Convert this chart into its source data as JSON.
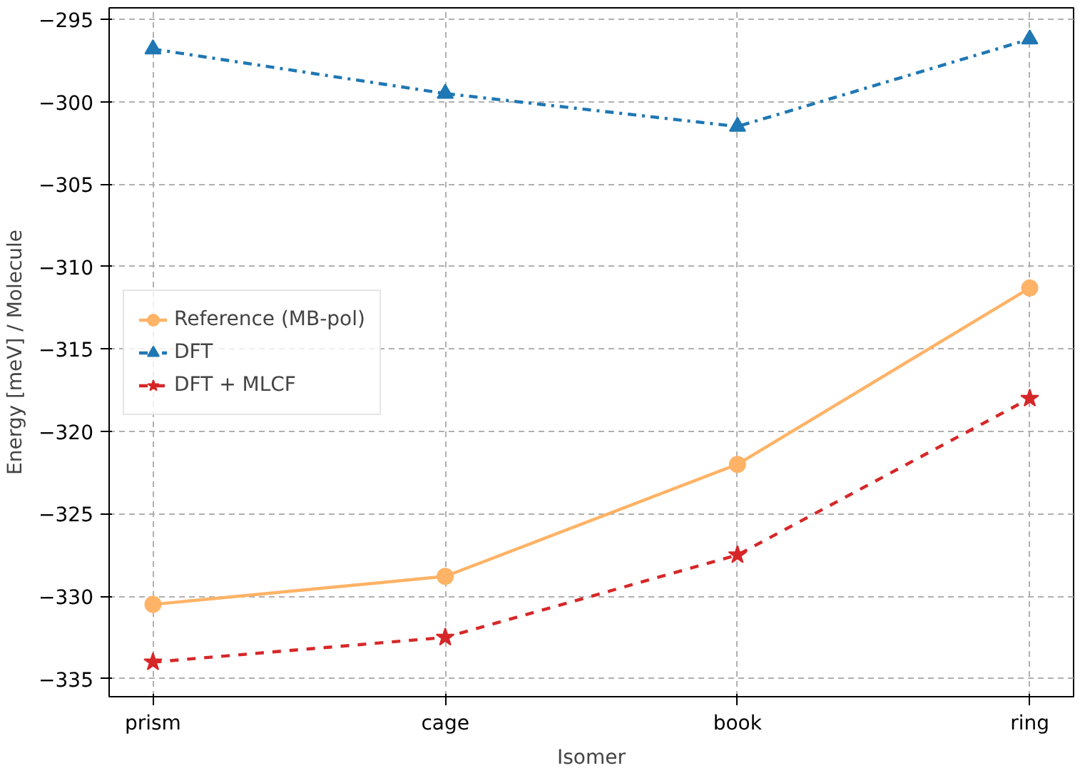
{
  "chart_data": {
    "type": "line",
    "xlabel": "Isomer",
    "ylabel": "Energy [meV] / Molecule",
    "categories": [
      "prism",
      "cage",
      "book",
      "ring"
    ],
    "series": [
      {
        "name": "Reference (MB-pol)",
        "color": "#ffb366",
        "values": [
          -330.5,
          -328.8,
          -322.0,
          -311.3
        ],
        "marker": "circle",
        "line_style": "solid"
      },
      {
        "name": "DFT",
        "color": "#1f77b4",
        "values": [
          -296.8,
          -299.5,
          -301.5,
          -296.2
        ],
        "marker": "triangle",
        "line_style": "dashdot"
      },
      {
        "name": "DFT + MLCF",
        "color": "#d62728",
        "values": [
          -334.0,
          -332.5,
          -327.5,
          -318.0
        ],
        "marker": "star",
        "line_style": "dashed"
      }
    ],
    "ylim": [
      -336.1,
      -294.3
    ],
    "yticks": [
      -335,
      -330,
      -325,
      -320,
      -315,
      -310,
      -305,
      -300,
      -295
    ],
    "grid": true,
    "legend": "center left"
  }
}
